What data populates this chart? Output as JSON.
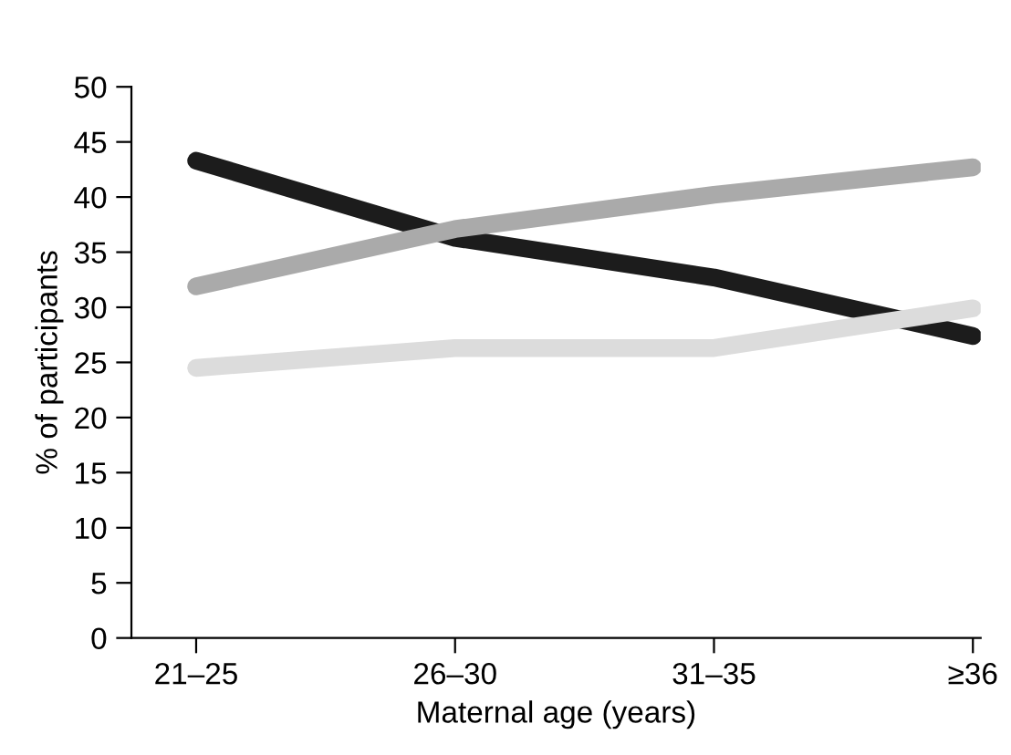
{
  "chart_data": {
    "type": "line",
    "xlabel": "Maternal age (years)",
    "ylabel": "% of participants",
    "categories": [
      "21–25",
      "26–30",
      "31–35",
      "≥36"
    ],
    "series": [
      {
        "color": "#1c1c1c",
        "values": [
          43.3,
          36.3,
          32.7,
          27.4
        ]
      },
      {
        "color": "#aaaaaa",
        "values": [
          31.9,
          37.1,
          40.2,
          42.7
        ]
      },
      {
        "color": "#dcdcdc",
        "values": [
          24.5,
          26.3,
          26.3,
          29.9
        ]
      }
    ],
    "ylim": [
      0,
      50
    ],
    "yticks": [
      0,
      5,
      10,
      15,
      20,
      25,
      30,
      35,
      40,
      45,
      50
    ],
    "grid": false,
    "legend": false,
    "marker": "none",
    "line_style": "solid"
  }
}
